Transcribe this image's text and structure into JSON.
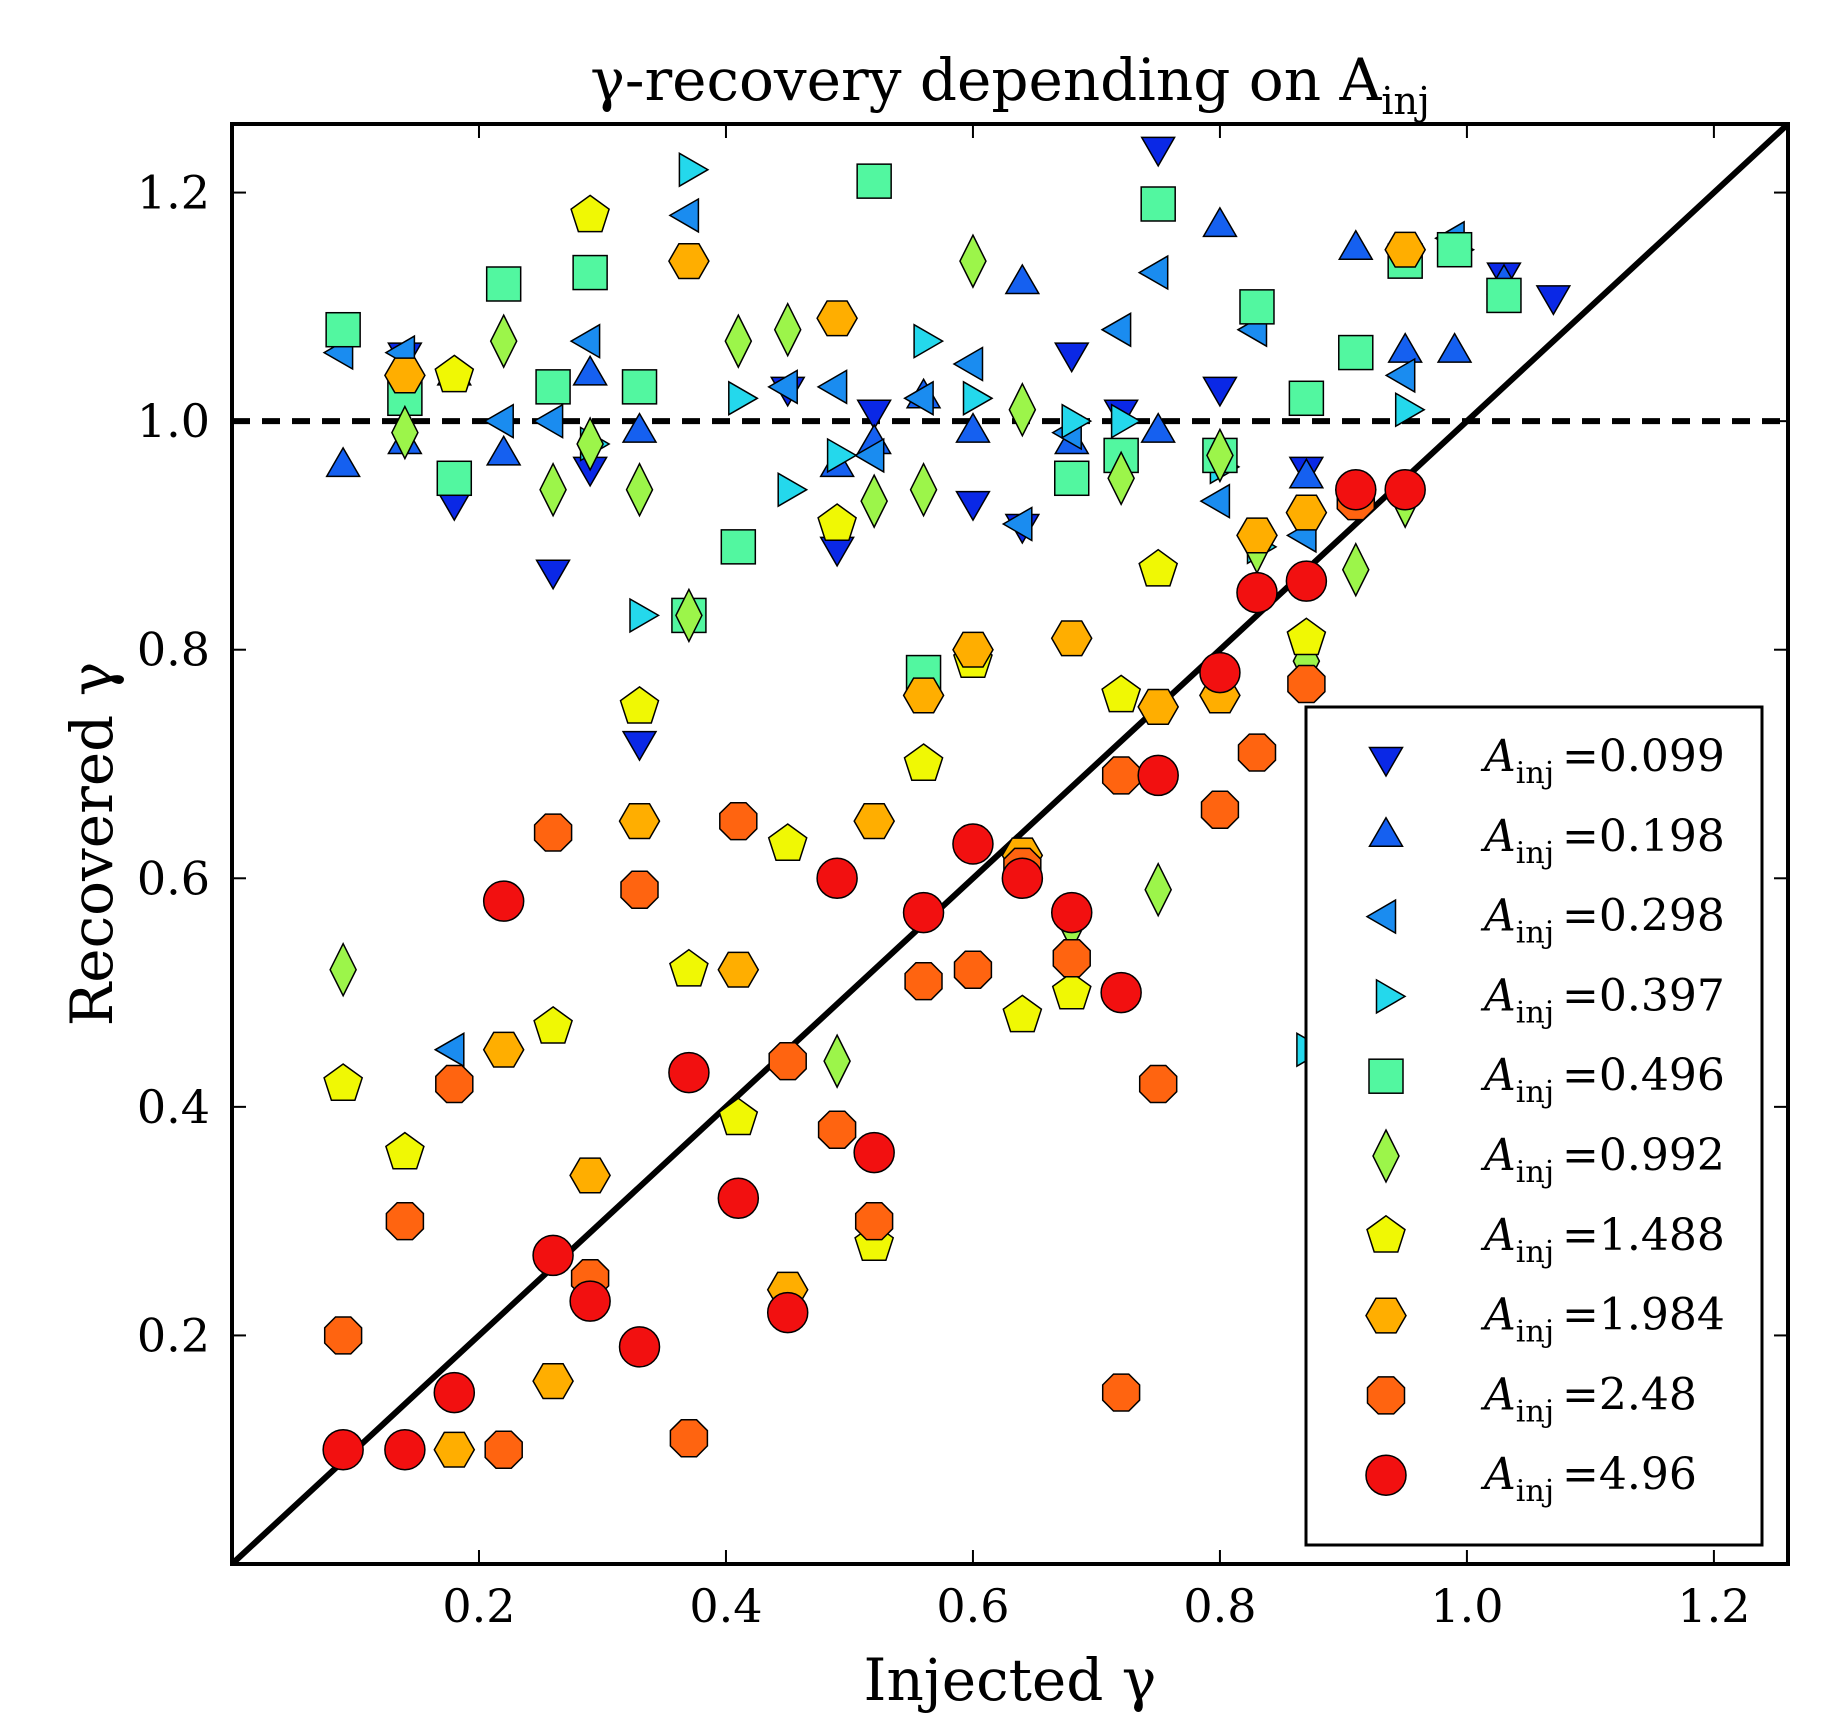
{
  "chart_data": {
    "type": "scatter",
    "title": "γ-recovery depending on A",
    "title_sub": "inj",
    "xlabel": "Injected γ",
    "ylabel": "Recovered γ",
    "xlim": [
      0.0,
      1.26
    ],
    "ylim": [
      0.0,
      1.26
    ],
    "xticks": [
      0.2,
      0.4,
      0.6,
      0.8,
      1.0,
      1.2
    ],
    "xtick_labels": [
      "0.2",
      "0.4",
      "0.6",
      "0.8",
      "1.0",
      "1.2"
    ],
    "yticks": [
      0.2,
      0.4,
      0.6,
      0.8,
      1.0,
      1.2
    ],
    "ytick_labels": [
      "0.2",
      "0.4",
      "0.6",
      "0.8",
      "1.0",
      "1.2"
    ],
    "grid": false,
    "legend_position": "bottom-right",
    "reference_lines": [
      {
        "kind": "diagonal",
        "style": "solid",
        "color": "#000000",
        "from": [
          0.0,
          0.0
        ],
        "to": [
          1.26,
          1.26
        ]
      },
      {
        "kind": "horizontal",
        "style": "dashed",
        "color": "#000000",
        "y": 1.0
      }
    ],
    "series": [
      {
        "name": "=0.099",
        "label_prefix": "A",
        "label_sub": "inj",
        "marker": "triangle-down",
        "color": "#0a28e6",
        "points": [
          [
            0.14,
            1.06
          ],
          [
            0.18,
            0.93
          ],
          [
            0.26,
            0.87
          ],
          [
            0.29,
            0.96
          ],
          [
            0.33,
            0.72
          ],
          [
            0.45,
            1.03
          ],
          [
            0.49,
            0.89
          ],
          [
            0.52,
            1.01
          ],
          [
            0.6,
            0.93
          ],
          [
            0.64,
            0.91
          ],
          [
            0.68,
            1.06
          ],
          [
            0.72,
            1.01
          ],
          [
            0.75,
            1.24
          ],
          [
            0.8,
            1.03
          ],
          [
            0.87,
            0.96
          ],
          [
            1.03,
            1.13
          ],
          [
            1.07,
            1.11
          ]
        ]
      },
      {
        "name": "=0.198",
        "label_prefix": "A",
        "label_sub": "inj",
        "marker": "triangle-up",
        "color": "#1560f0",
        "points": [
          [
            0.09,
            0.96
          ],
          [
            0.14,
            0.98
          ],
          [
            0.18,
            1.04
          ],
          [
            0.22,
            0.97
          ],
          [
            0.29,
            1.04
          ],
          [
            0.33,
            0.99
          ],
          [
            0.49,
            0.96
          ],
          [
            0.52,
            0.98
          ],
          [
            0.56,
            1.02
          ],
          [
            0.6,
            0.99
          ],
          [
            0.64,
            1.12
          ],
          [
            0.68,
            0.98
          ],
          [
            0.75,
            0.99
          ],
          [
            0.8,
            1.17
          ],
          [
            0.87,
            0.95
          ],
          [
            0.91,
            1.15
          ],
          [
            0.95,
            1.06
          ],
          [
            0.99,
            1.06
          ],
          [
            1.03,
            1.12
          ]
        ]
      },
      {
        "name": "=0.298",
        "label_prefix": "A",
        "label_sub": "inj",
        "marker": "triangle-left",
        "color": "#1a8cf0",
        "points": [
          [
            0.09,
            1.06
          ],
          [
            0.14,
            1.06
          ],
          [
            0.18,
            0.45
          ],
          [
            0.22,
            1.0
          ],
          [
            0.26,
            1.0
          ],
          [
            0.29,
            1.07
          ],
          [
            0.37,
            1.18
          ],
          [
            0.45,
            1.03
          ],
          [
            0.49,
            1.03
          ],
          [
            0.52,
            0.97
          ],
          [
            0.56,
            1.02
          ],
          [
            0.6,
            1.05
          ],
          [
            0.64,
            0.91
          ],
          [
            0.68,
            0.99
          ],
          [
            0.72,
            1.08
          ],
          [
            0.75,
            1.13
          ],
          [
            0.8,
            0.93
          ],
          [
            0.83,
            1.08
          ],
          [
            0.87,
            0.9
          ],
          [
            0.95,
            1.04
          ],
          [
            0.99,
            1.16
          ]
        ]
      },
      {
        "name": "=0.397",
        "label_prefix": "A",
        "label_sub": "inj",
        "marker": "triangle-right",
        "color": "#24d8ec",
        "points": [
          [
            0.29,
            0.98
          ],
          [
            0.33,
            0.83
          ],
          [
            0.37,
            1.22
          ],
          [
            0.41,
            1.02
          ],
          [
            0.45,
            0.94
          ],
          [
            0.49,
            0.97
          ],
          [
            0.56,
            1.07
          ],
          [
            0.6,
            1.02
          ],
          [
            0.68,
            1.0
          ],
          [
            0.72,
            1.0
          ],
          [
            0.8,
            0.96
          ],
          [
            0.83,
            0.89
          ],
          [
            0.87,
            0.45
          ],
          [
            0.95,
            1.01
          ],
          [
            0.99,
            1.15
          ]
        ]
      },
      {
        "name": "=0.496",
        "label_prefix": "A",
        "label_sub": "inj",
        "marker": "square",
        "color": "#52f7a0",
        "points": [
          [
            0.09,
            1.08
          ],
          [
            0.14,
            1.02
          ],
          [
            0.18,
            0.95
          ],
          [
            0.22,
            1.12
          ],
          [
            0.26,
            1.03
          ],
          [
            0.29,
            1.13
          ],
          [
            0.33,
            1.03
          ],
          [
            0.37,
            0.83
          ],
          [
            0.41,
            0.89
          ],
          [
            0.52,
            1.21
          ],
          [
            0.56,
            0.78
          ],
          [
            0.68,
            0.95
          ],
          [
            0.72,
            0.97
          ],
          [
            0.75,
            1.19
          ],
          [
            0.8,
            0.97
          ],
          [
            0.83,
            1.1
          ],
          [
            0.87,
            1.02
          ],
          [
            0.91,
            1.06
          ],
          [
            0.95,
            1.14
          ],
          [
            0.99,
            1.15
          ],
          [
            1.03,
            1.11
          ]
        ]
      },
      {
        "name": "=0.992",
        "label_prefix": "A",
        "label_sub": "inj",
        "marker": "diamond",
        "color": "#9cf54a",
        "points": [
          [
            0.09,
            0.52
          ],
          [
            0.14,
            0.99
          ],
          [
            0.22,
            1.07
          ],
          [
            0.26,
            0.94
          ],
          [
            0.29,
            0.98
          ],
          [
            0.33,
            0.94
          ],
          [
            0.37,
            0.83
          ],
          [
            0.41,
            1.07
          ],
          [
            0.45,
            1.08
          ],
          [
            0.49,
            0.44
          ],
          [
            0.52,
            0.93
          ],
          [
            0.56,
            0.94
          ],
          [
            0.6,
            1.14
          ],
          [
            0.64,
            1.01
          ],
          [
            0.68,
            0.56
          ],
          [
            0.72,
            0.95
          ],
          [
            0.75,
            0.59
          ],
          [
            0.8,
            0.97
          ],
          [
            0.83,
            0.89
          ],
          [
            0.87,
            0.79
          ],
          [
            0.91,
            0.87
          ],
          [
            0.95,
            0.93
          ]
        ]
      },
      {
        "name": "=1.488",
        "label_prefix": "A",
        "label_sub": "inj",
        "marker": "pentagon",
        "color": "#f0f804",
        "points": [
          [
            0.09,
            0.42
          ],
          [
            0.14,
            0.36
          ],
          [
            0.18,
            1.04
          ],
          [
            0.26,
            0.47
          ],
          [
            0.29,
            1.18
          ],
          [
            0.33,
            0.75
          ],
          [
            0.37,
            0.52
          ],
          [
            0.41,
            0.39
          ],
          [
            0.45,
            0.63
          ],
          [
            0.49,
            0.91
          ],
          [
            0.52,
            0.28
          ],
          [
            0.56,
            0.7
          ],
          [
            0.6,
            0.79
          ],
          [
            0.64,
            0.48
          ],
          [
            0.68,
            0.5
          ],
          [
            0.72,
            0.76
          ],
          [
            0.75,
            0.87
          ],
          [
            0.87,
            0.81
          ]
        ]
      },
      {
        "name": "=1.984",
        "label_prefix": "A",
        "label_sub": "inj",
        "marker": "hexagon",
        "color": "#ffae00",
        "points": [
          [
            0.14,
            1.04
          ],
          [
            0.18,
            0.1
          ],
          [
            0.22,
            0.45
          ],
          [
            0.26,
            0.16
          ],
          [
            0.29,
            0.34
          ],
          [
            0.33,
            0.65
          ],
          [
            0.37,
            1.14
          ],
          [
            0.41,
            0.52
          ],
          [
            0.45,
            0.24
          ],
          [
            0.49,
            1.09
          ],
          [
            0.52,
            0.65
          ],
          [
            0.56,
            0.76
          ],
          [
            0.6,
            0.8
          ],
          [
            0.64,
            0.62
          ],
          [
            0.68,
            0.81
          ],
          [
            0.75,
            0.75
          ],
          [
            0.8,
            0.76
          ],
          [
            0.83,
            0.9
          ],
          [
            0.87,
            0.92
          ],
          [
            0.91,
            0.94
          ],
          [
            0.95,
            1.15
          ]
        ]
      },
      {
        "name": "=2.48",
        "label_prefix": "A",
        "label_sub": "inj",
        "marker": "octagon",
        "color": "#ff6410",
        "points": [
          [
            0.09,
            0.2
          ],
          [
            0.14,
            0.3
          ],
          [
            0.18,
            0.42
          ],
          [
            0.22,
            0.1
          ],
          [
            0.26,
            0.64
          ],
          [
            0.29,
            0.25
          ],
          [
            0.33,
            0.59
          ],
          [
            0.37,
            0.11
          ],
          [
            0.41,
            0.65
          ],
          [
            0.45,
            0.44
          ],
          [
            0.49,
            0.38
          ],
          [
            0.52,
            0.3
          ],
          [
            0.56,
            0.51
          ],
          [
            0.6,
            0.52
          ],
          [
            0.64,
            0.61
          ],
          [
            0.68,
            0.53
          ],
          [
            0.72,
            0.69
          ],
          [
            0.72,
            0.15
          ],
          [
            0.75,
            0.42
          ],
          [
            0.8,
            0.66
          ],
          [
            0.83,
            0.71
          ],
          [
            0.87,
            0.77
          ],
          [
            0.91,
            0.93
          ]
        ]
      },
      {
        "name": "=4.96",
        "label_prefix": "A",
        "label_sub": "inj",
        "marker": "circle",
        "color": "#f21010",
        "points": [
          [
            0.09,
            0.1
          ],
          [
            0.14,
            0.1
          ],
          [
            0.18,
            0.15
          ],
          [
            0.22,
            0.58
          ],
          [
            0.26,
            0.27
          ],
          [
            0.29,
            0.23
          ],
          [
            0.33,
            0.19
          ],
          [
            0.37,
            0.43
          ],
          [
            0.41,
            0.32
          ],
          [
            0.45,
            0.22
          ],
          [
            0.49,
            0.6
          ],
          [
            0.52,
            0.36
          ],
          [
            0.56,
            0.57
          ],
          [
            0.6,
            0.63
          ],
          [
            0.64,
            0.6
          ],
          [
            0.68,
            0.57
          ],
          [
            0.72,
            0.5
          ],
          [
            0.75,
            0.69
          ],
          [
            0.8,
            0.78
          ],
          [
            0.83,
            0.85
          ],
          [
            0.87,
            0.86
          ],
          [
            0.91,
            0.94
          ],
          [
            0.95,
            0.94
          ]
        ]
      }
    ]
  }
}
